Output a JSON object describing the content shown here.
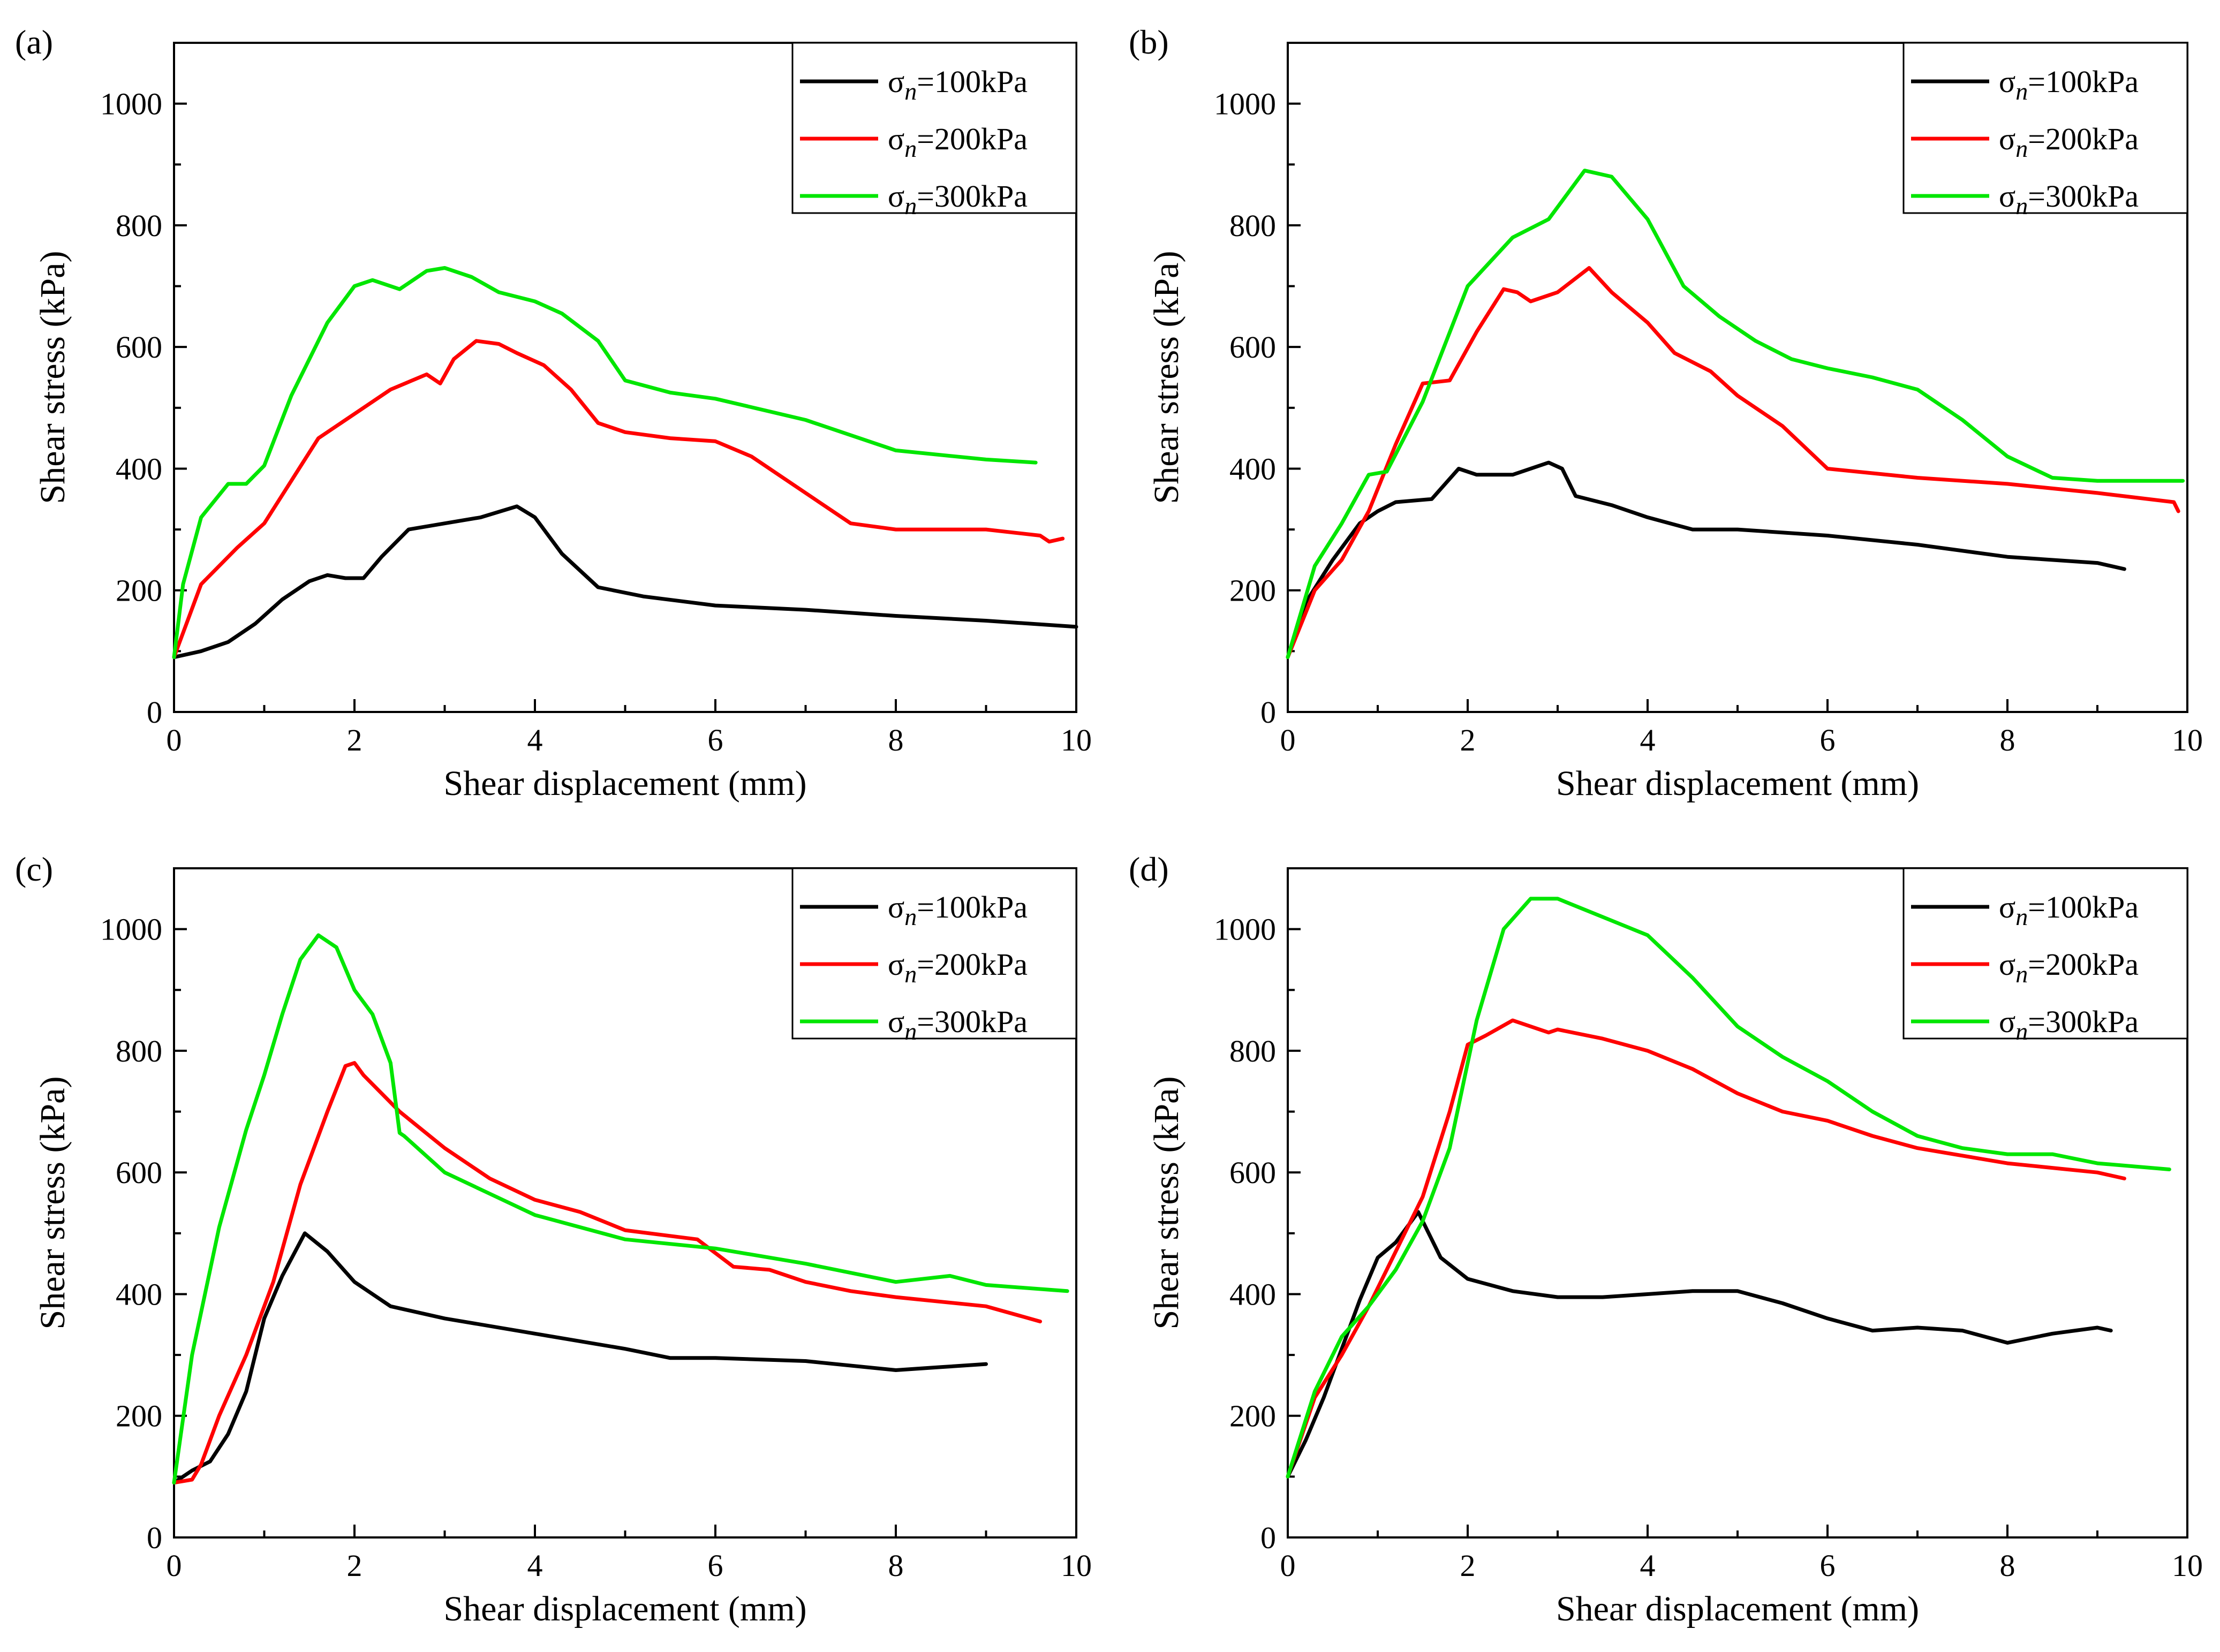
{
  "colors": {
    "s100": "#000000",
    "s200": "#ff0000",
    "s300": "#00e600"
  },
  "chart_data": [
    {
      "panel": "(a)",
      "type": "line",
      "xlabel": "Shear displacement (mm)",
      "ylabel": "Shear stress (kPa)",
      "xlim": [
        0,
        10
      ],
      "ylim": [
        0,
        1100
      ],
      "xticks": [
        0,
        2,
        4,
        6,
        8,
        10
      ],
      "yticks": [
        0,
        200,
        400,
        600,
        800,
        1000
      ],
      "legend_position": "top-right",
      "series": [
        {
          "symbol": "σ",
          "sub": "n",
          "value": "=100kPa",
          "color": "#000000",
          "x": [
            0,
            0.3,
            0.6,
            0.9,
            1.2,
            1.5,
            1.7,
            1.9,
            2.1,
            2.3,
            2.6,
            3.0,
            3.4,
            3.8,
            4.0,
            4.3,
            4.7,
            5.2,
            6.0,
            7.0,
            8.0,
            9.0,
            10.0
          ],
          "y": [
            90,
            100,
            115,
            145,
            185,
            215,
            225,
            220,
            220,
            255,
            300,
            310,
            320,
            338,
            320,
            260,
            205,
            190,
            175,
            168,
            158,
            150,
            140
          ]
        },
        {
          "symbol": "σ",
          "sub": "n",
          "value": "=200kPa",
          "color": "#ff0000",
          "x": [
            0,
            0.3,
            0.7,
            1.0,
            1.3,
            1.6,
            2.0,
            2.4,
            2.8,
            2.95,
            3.1,
            3.35,
            3.6,
            3.8,
            4.1,
            4.4,
            4.7,
            5.0,
            5.5,
            6.0,
            6.4,
            7.0,
            7.5,
            8.0,
            9.0,
            9.6,
            9.7,
            9.85
          ],
          "y": [
            90,
            210,
            270,
            310,
            380,
            450,
            490,
            530,
            555,
            540,
            580,
            610,
            605,
            590,
            570,
            530,
            475,
            460,
            450,
            445,
            420,
            360,
            310,
            300,
            300,
            290,
            280,
            285
          ]
        },
        {
          "symbol": "σ",
          "sub": "n",
          "value": "=300kPa",
          "color": "#00e600",
          "x": [
            0,
            0.1,
            0.3,
            0.6,
            0.8,
            1.0,
            1.3,
            1.7,
            2.0,
            2.2,
            2.5,
            2.8,
            3.0,
            3.3,
            3.6,
            4.0,
            4.3,
            4.7,
            5.0,
            5.5,
            6.0,
            7.0,
            8.0,
            9.0,
            9.55
          ],
          "y": [
            90,
            210,
            320,
            375,
            375,
            405,
            520,
            640,
            700,
            710,
            695,
            725,
            730,
            715,
            690,
            675,
            655,
            610,
            545,
            525,
            515,
            480,
            430,
            415,
            410
          ]
        }
      ]
    },
    {
      "panel": "(b)",
      "type": "line",
      "xlabel": "Shear displacement (mm)",
      "ylabel": "Shear stress (kPa)",
      "xlim": [
        0,
        10
      ],
      "ylim": [
        0,
        1100
      ],
      "xticks": [
        0,
        2,
        4,
        6,
        8,
        10
      ],
      "yticks": [
        0,
        200,
        400,
        600,
        800,
        1000
      ],
      "legend_position": "top-right",
      "series": [
        {
          "symbol": "σ",
          "sub": "n",
          "value": "=100kPa",
          "color": "#000000",
          "x": [
            0,
            0.2,
            0.5,
            0.8,
            1.0,
            1.2,
            1.6,
            1.9,
            2.1,
            2.5,
            2.9,
            3.05,
            3.2,
            3.6,
            4.0,
            4.5,
            5.0,
            6.0,
            7.0,
            8.0,
            9.0,
            9.3
          ],
          "y": [
            90,
            180,
            250,
            310,
            330,
            345,
            350,
            400,
            390,
            390,
            410,
            400,
            355,
            340,
            320,
            300,
            300,
            290,
            275,
            255,
            245,
            235
          ]
        },
        {
          "symbol": "σ",
          "sub": "n",
          "value": "=200kPa",
          "color": "#ff0000",
          "x": [
            0,
            0.3,
            0.6,
            0.9,
            1.2,
            1.5,
            1.8,
            2.1,
            2.4,
            2.55,
            2.7,
            3.0,
            3.35,
            3.6,
            4.0,
            4.3,
            4.7,
            5.0,
            5.5,
            6.0,
            7.0,
            8.0,
            9.0,
            9.85,
            9.9
          ],
          "y": [
            90,
            200,
            250,
            330,
            440,
            540,
            545,
            625,
            695,
            690,
            675,
            690,
            730,
            690,
            640,
            590,
            560,
            520,
            470,
            400,
            385,
            375,
            360,
            345,
            330
          ]
        },
        {
          "symbol": "σ",
          "sub": "n",
          "value": "=300kPa",
          "color": "#00e600",
          "x": [
            0,
            0.3,
            0.6,
            0.9,
            1.1,
            1.5,
            2.0,
            2.5,
            2.9,
            3.3,
            3.6,
            4.0,
            4.4,
            4.8,
            5.2,
            5.6,
            6.0,
            6.5,
            7.0,
            7.5,
            8.0,
            8.5,
            9.0,
            9.5,
            9.95
          ],
          "y": [
            90,
            240,
            310,
            390,
            395,
            510,
            700,
            780,
            810,
            890,
            880,
            810,
            700,
            650,
            610,
            580,
            565,
            550,
            530,
            480,
            420,
            385,
            380,
            380,
            380
          ]
        }
      ]
    },
    {
      "panel": "(c)",
      "type": "line",
      "xlabel": "Shear displacement (mm)",
      "ylabel": "Shear stress (kPa)",
      "xlim": [
        0,
        10
      ],
      "ylim": [
        0,
        1100
      ],
      "xticks": [
        0,
        2,
        4,
        6,
        8,
        10
      ],
      "yticks": [
        0,
        200,
        400,
        600,
        800,
        1000
      ],
      "legend_position": "top-right",
      "series": [
        {
          "symbol": "σ",
          "sub": "n",
          "value": "=100kPa",
          "color": "#000000",
          "x": [
            0,
            0.2,
            0.4,
            0.6,
            0.8,
            1.0,
            1.2,
            1.45,
            1.7,
            2.0,
            2.4,
            3.0,
            4.0,
            5.0,
            5.5,
            6.0,
            7.0,
            8.0,
            8.5,
            9.0
          ],
          "y": [
            90,
            110,
            125,
            170,
            240,
            360,
            430,
            500,
            470,
            420,
            380,
            360,
            335,
            310,
            295,
            295,
            290,
            275,
            280,
            285
          ]
        },
        {
          "symbol": "σ",
          "sub": "n",
          "value": "=200kPa",
          "color": "#ff0000",
          "x": [
            0,
            0.2,
            0.3,
            0.5,
            0.8,
            1.1,
            1.4,
            1.7,
            1.9,
            2.0,
            2.1,
            2.5,
            3.0,
            3.5,
            4.0,
            4.5,
            5.0,
            5.8,
            6.2,
            6.6,
            7.0,
            7.5,
            8.0,
            9.0,
            9.6
          ],
          "y": [
            90,
            95,
            120,
            200,
            300,
            420,
            580,
            700,
            775,
            780,
            760,
            700,
            640,
            590,
            555,
            535,
            505,
            490,
            445,
            440,
            420,
            405,
            395,
            380,
            355
          ]
        },
        {
          "symbol": "σ",
          "sub": "n",
          "value": "=300kPa",
          "color": "#00e600",
          "x": [
            0,
            0.2,
            0.5,
            0.8,
            1.0,
            1.2,
            1.4,
            1.6,
            1.8,
            2.0,
            2.2,
            2.4,
            2.5,
            2.55,
            3.0,
            3.5,
            4.0,
            5.0,
            6.0,
            7.0,
            8.0,
            8.6,
            9.0,
            9.9
          ],
          "y": [
            90,
            300,
            510,
            670,
            760,
            860,
            950,
            990,
            970,
            900,
            860,
            780,
            665,
            660,
            600,
            565,
            530,
            490,
            475,
            450,
            420,
            430,
            415,
            405
          ]
        }
      ]
    },
    {
      "panel": "(d)",
      "type": "line",
      "xlabel": "Shear displacement (mm)",
      "ylabel": "Shear stress (kPa)",
      "xlim": [
        0,
        10
      ],
      "ylim": [
        0,
        1100
      ],
      "xticks": [
        0,
        2,
        4,
        6,
        8,
        10
      ],
      "yticks": [
        0,
        200,
        400,
        600,
        800,
        1000
      ],
      "legend_position": "top-right",
      "series": [
        {
          "symbol": "σ",
          "sub": "n",
          "value": "=100kPa",
          "color": "#000000",
          "x": [
            0,
            0.2,
            0.4,
            0.6,
            0.8,
            1.0,
            1.2,
            1.45,
            1.7,
            2.0,
            2.5,
            3.0,
            3.5,
            4.0,
            4.5,
            5.0,
            5.5,
            6.0,
            6.5,
            7.0,
            7.5,
            8.0,
            8.5,
            9.0,
            9.15
          ],
          "y": [
            100,
            160,
            230,
            310,
            390,
            460,
            485,
            535,
            460,
            425,
            405,
            395,
            395,
            400,
            405,
            405,
            385,
            360,
            340,
            345,
            340,
            320,
            335,
            345,
            340
          ]
        },
        {
          "symbol": "σ",
          "sub": "n",
          "value": "=200kPa",
          "color": "#ff0000",
          "x": [
            0,
            0.3,
            0.6,
            0.9,
            1.2,
            1.5,
            1.8,
            2.0,
            2.2,
            2.5,
            2.9,
            3.0,
            3.5,
            4.0,
            4.5,
            5.0,
            5.5,
            6.0,
            6.5,
            7.0,
            8.0,
            9.0,
            9.3
          ],
          "y": [
            100,
            230,
            300,
            380,
            470,
            560,
            700,
            810,
            825,
            850,
            830,
            835,
            820,
            800,
            770,
            730,
            700,
            685,
            660,
            640,
            615,
            600,
            590
          ]
        },
        {
          "symbol": "σ",
          "sub": "n",
          "value": "=300kPa",
          "color": "#00e600",
          "x": [
            0,
            0.3,
            0.6,
            0.9,
            1.2,
            1.5,
            1.8,
            2.1,
            2.4,
            2.7,
            3.0,
            3.5,
            4.0,
            4.5,
            5.0,
            5.5,
            6.0,
            6.5,
            7.0,
            7.5,
            8.0,
            8.5,
            9.0,
            9.8
          ],
          "y": [
            100,
            240,
            330,
            380,
            440,
            520,
            640,
            850,
            1000,
            1050,
            1050,
            1020,
            990,
            920,
            840,
            790,
            750,
            700,
            660,
            640,
            630,
            630,
            615,
            605
          ]
        }
      ]
    }
  ]
}
